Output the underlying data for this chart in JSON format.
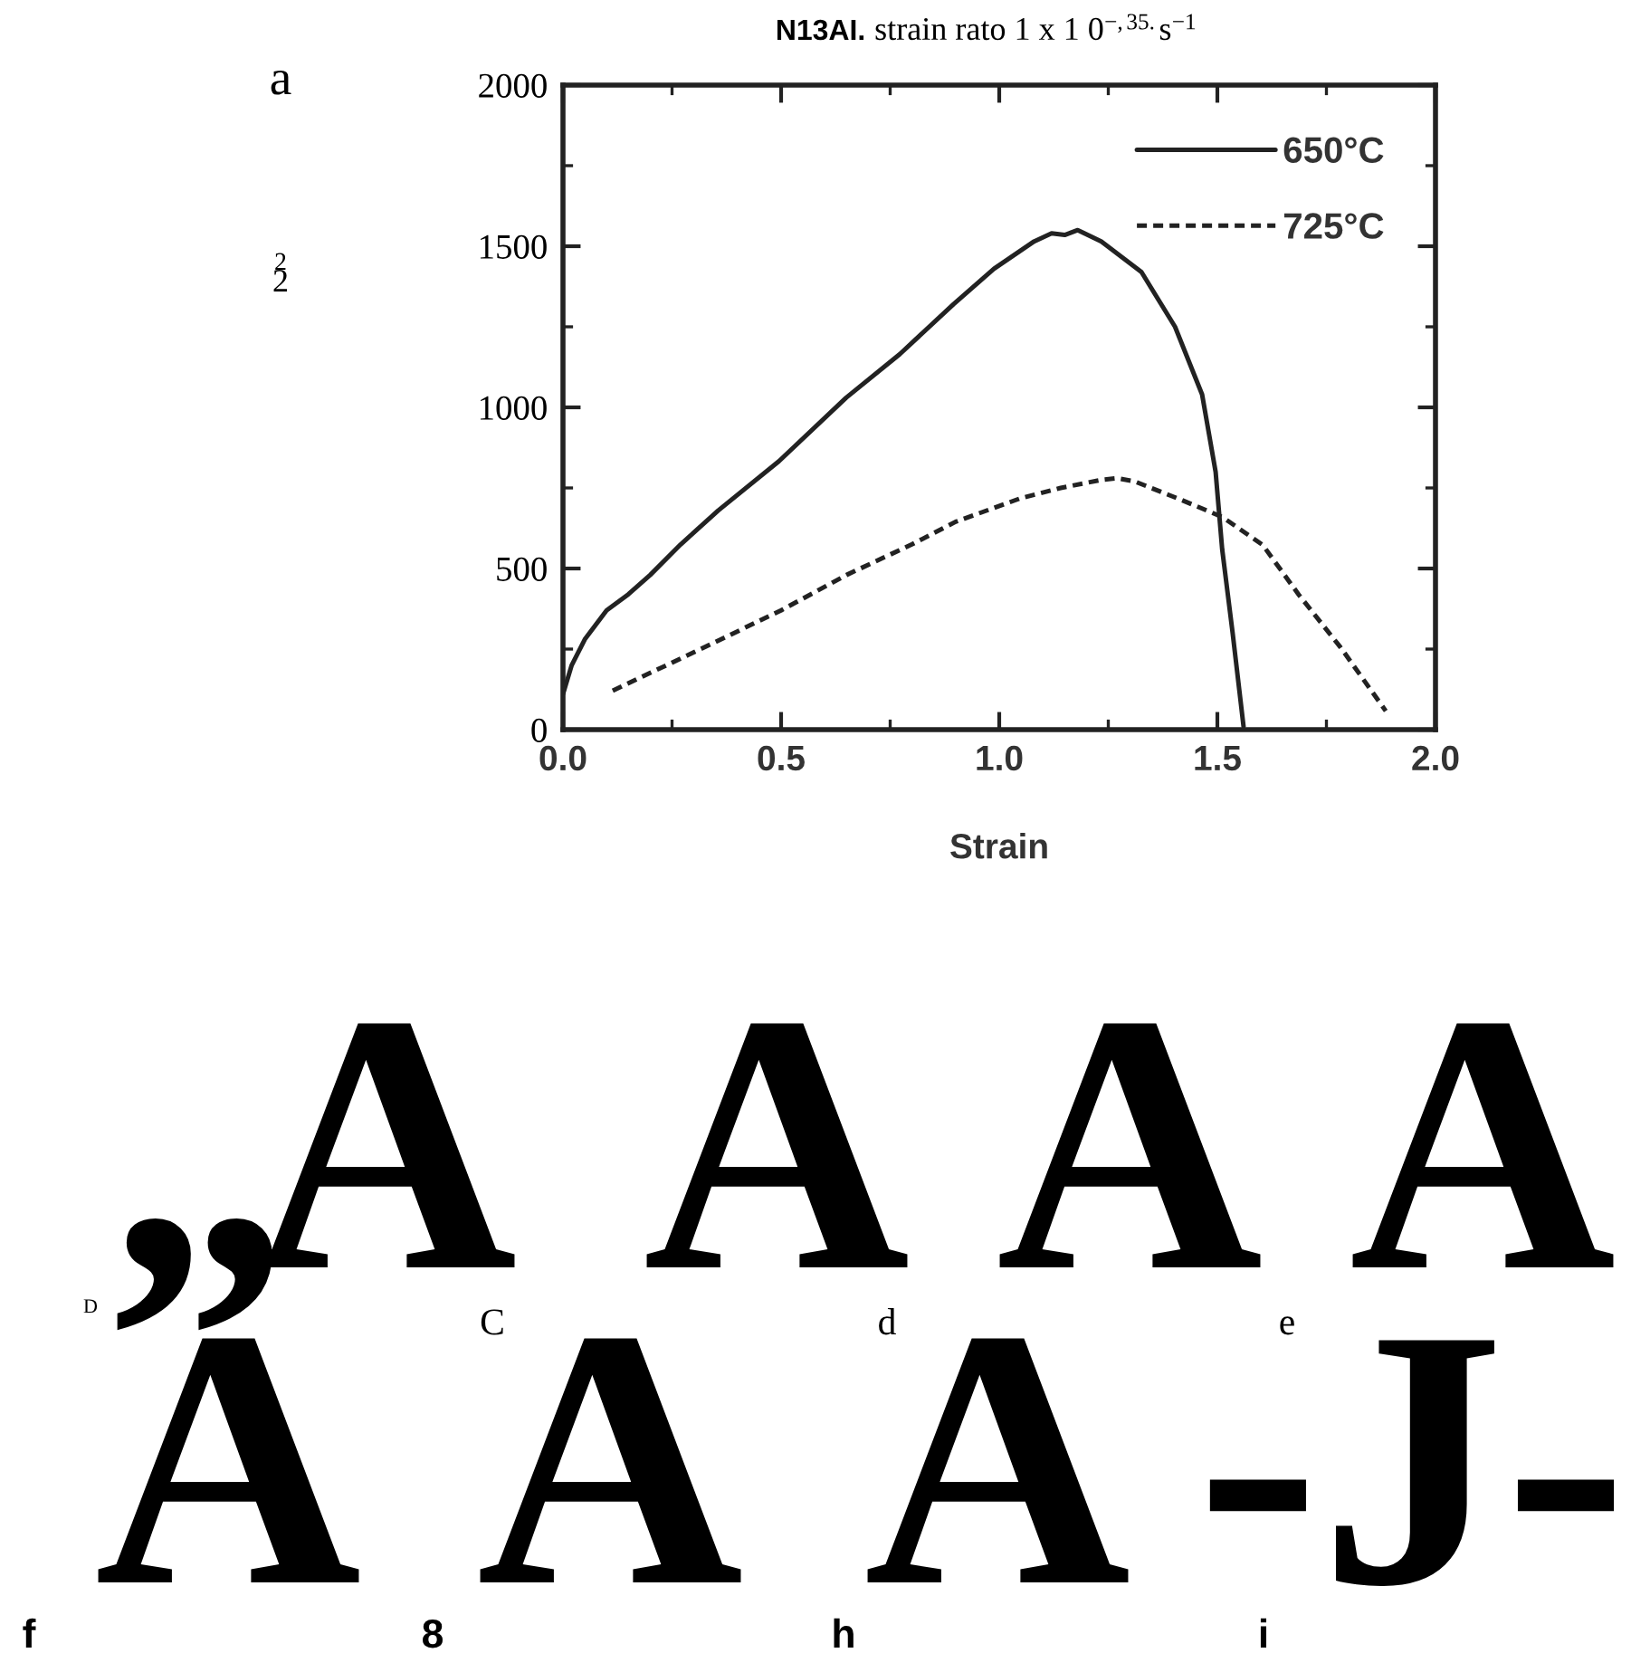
{
  "chart_data": {
    "type": "line",
    "title": "N13AI. strain rato 1 x 1 0$^{−,35.}$s$^{−1}$",
    "xlabel": "Strain",
    "xlim": [
      0,
      2
    ],
    "xticks": [
      {
        "value": 0,
        "label": "0.0"
      },
      {
        "value": 0.5,
        "label": "0.5"
      },
      {
        "value": 1,
        "label": "1.0"
      },
      {
        "value": 1.5,
        "label": "1.5"
      },
      {
        "value": 2,
        "label": "2.0"
      }
    ],
    "ylim": [
      0,
      2000
    ],
    "yticks": [
      0,
      500,
      1000,
      1500,
      2000
    ],
    "grid": false,
    "legend": "top right",
    "series": [
      {
        "name": "650°C",
        "color": "#222222",
        "line_style": "solid",
        "x": [
          0.0,
          0.02,
          0.05,
          0.1,
          0.15,
          0.2,
          0.27,
          0.356,
          0.495,
          0.649,
          0.772,
          0.895,
          0.988,
          1.08,
          1.12,
          1.15,
          1.18,
          1.234,
          1.326,
          1.403,
          1.465,
          1.496,
          1.511,
          1.535,
          1.56
        ],
        "values": [
          110,
          200,
          280,
          370,
          420,
          480,
          575,
          680,
          833,
          1030,
          1165,
          1320,
          1430,
          1515,
          1540,
          1535,
          1550,
          1515,
          1420,
          1250,
          1040,
          800,
          560,
          300,
          10
        ]
      },
      {
        "name": "725°C",
        "color": "#222222",
        "line_style": "dashed",
        "x": [
          0.114,
          0.3,
          0.5,
          0.65,
          0.8,
          0.9,
          1.049,
          1.141,
          1.234,
          1.27,
          1.311,
          1.419,
          1.511,
          1.604,
          1.687,
          1.782,
          1.886
        ],
        "values": [
          121,
          240,
          370,
          480,
          575,
          645,
          718,
          750,
          775,
          780,
          770,
          712,
          660,
          573,
          418,
          256,
          58
        ]
      }
    ],
    "annotations": [
      "a",
      "2",
      "2",
      "„",
      "A",
      "A",
      "A",
      "A",
      "D",
      "C",
      "d",
      "e",
      "A",
      "A",
      "A",
      "-J-",
      "f",
      "8",
      "h",
      "i"
    ]
  }
}
